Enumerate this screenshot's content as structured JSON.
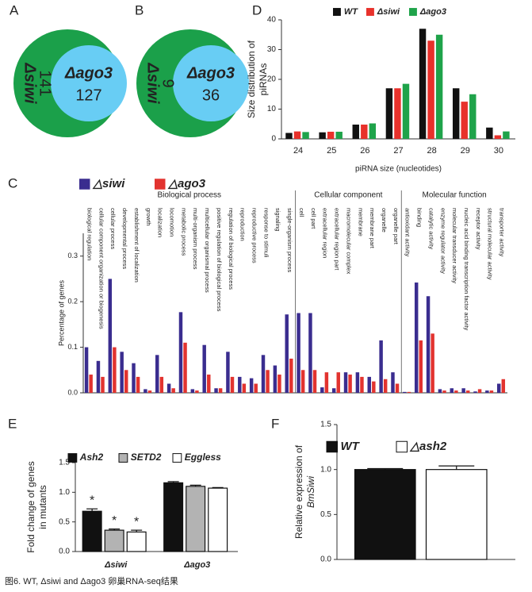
{
  "chart_data": [
    {
      "type": "venn",
      "panel": "A",
      "sets": [
        {
          "name": "Δsiwi",
          "value": 141,
          "color": "#1ba04a"
        },
        {
          "name": "Δago3",
          "value": 127,
          "color": "#68cdf4"
        }
      ]
    },
    {
      "type": "venn",
      "panel": "B",
      "sets": [
        {
          "name": "Δsiwi",
          "value": 9,
          "color": "#1ba04a"
        },
        {
          "name": "Δago3",
          "value": 36,
          "color": "#68cdf4"
        }
      ]
    },
    {
      "type": "bar",
      "panel": "D",
      "ylabel": [
        "Size distribution of",
        "piRNAs"
      ],
      "xlabel": "piRNA size (nucleotides)",
      "categories": [
        "24",
        "25",
        "26",
        "27",
        "28",
        "29",
        "30"
      ],
      "series": [
        {
          "name": "WT",
          "color": "#111111",
          "values": [
            2.0,
            2.2,
            4.8,
            17.0,
            37.0,
            17.0,
            3.8
          ]
        },
        {
          "name": "Δsiwi",
          "color": "#e8312b",
          "values": [
            2.5,
            2.4,
            4.8,
            17.0,
            33.0,
            12.5,
            1.2
          ]
        },
        {
          "name": "Δago3",
          "color": "#1fa34a",
          "values": [
            2.3,
            2.4,
            5.2,
            18.5,
            35.0,
            15.0,
            2.5
          ]
        }
      ],
      "ylim": [
        0,
        40
      ],
      "yticks": [
        0,
        10,
        20,
        30,
        40
      ]
    },
    {
      "type": "bar",
      "panel": "C",
      "ylabel": [
        "Percentage of genes"
      ],
      "groups": [
        {
          "name": "Biological process",
          "categories": [
            "biological  regulation",
            "cellular component organization or biogenesis",
            "cellular process",
            "developmental process",
            "establishment of localization",
            "growth",
            "localization",
            "locomotion",
            "metabolic process",
            "multi-organism process",
            "multicellular organismal process",
            "positive regulation of biological process",
            "regulation of biological process",
            "reproduction",
            "reproductive process",
            "response to stimuli",
            "signaling",
            "single-organism process"
          ]
        },
        {
          "name": "Cellular component",
          "categories": [
            "cell",
            "cell part",
            "extracellular region",
            "extracellular region part",
            "macromolecular complex",
            "membrane",
            "membrane part",
            "organelle",
            "organelle part"
          ]
        },
        {
          "name": "Molecular function",
          "categories": [
            "antioxidant activity",
            "binding",
            "catalytic activity",
            "enzyme regulator activity",
            "molecular transducer activity",
            "nucleic acid binding transcription factor activity",
            "receptor activity",
            "structural molecular activity",
            "transporter activity"
          ]
        }
      ],
      "series": [
        {
          "name": "△siwi",
          "color": "#3a2d8f",
          "values": [
            0.1,
            0.07,
            0.25,
            0.09,
            0.065,
            0.008,
            0.083,
            0.02,
            0.177,
            0.008,
            0.105,
            0.01,
            0.09,
            0.035,
            0.032,
            0.083,
            0.06,
            0.172,
            0.175,
            0.175,
            0.012,
            0.01,
            0.045,
            0.045,
            0.035,
            0.115,
            0.045,
            0.002,
            0.242,
            0.212,
            0.008,
            0.01,
            0.01,
            0.003,
            0.005,
            0.02
          ]
        },
        {
          "name": "△ago3",
          "color": "#e2332f",
          "values": [
            0.04,
            0.035,
            0.1,
            0.05,
            0.035,
            0.005,
            0.035,
            0.01,
            0.11,
            0.005,
            0.04,
            0.01,
            0.035,
            0.02,
            0.02,
            0.05,
            0.04,
            0.075,
            0.05,
            0.05,
            0.045,
            0.045,
            0.04,
            0.035,
            0.025,
            0.03,
            0.02,
            0.002,
            0.115,
            0.13,
            0.005,
            0.005,
            0.005,
            0.008,
            0.005,
            0.03
          ]
        }
      ],
      "ylim": [
        0,
        0.35
      ],
      "yticks": [
        {
          "value": 0,
          "label": "0.0"
        },
        0.1,
        0.2,
        0.3
      ]
    },
    {
      "type": "bar",
      "panel": "E",
      "ylabel": [
        "Fold change of genes",
        "in mutants"
      ],
      "categories": [
        "Δsiwi",
        "Δago3"
      ],
      "series": [
        {
          "name": "Ash2",
          "color": "#111111",
          "values": [
            0.68,
            1.16
          ],
          "errors": [
            0.04,
            0.02
          ],
          "significance": [
            "*",
            null
          ]
        },
        {
          "name": "SETD2",
          "color": "#b3b3b3",
          "values": [
            0.36,
            1.1
          ],
          "errors": [
            0.02,
            0.02
          ],
          "significance": [
            "*",
            null
          ]
        },
        {
          "name": "Eggless",
          "color": "#ffffff",
          "values": [
            0.33,
            1.07
          ],
          "errors": [
            0.03,
            0.01
          ],
          "significance": [
            "*",
            null
          ]
        }
      ],
      "ylim": [
        0,
        1.5
      ],
      "yticks": [
        {
          "value": 0,
          "label": "0.0"
        },
        0.5,
        {
          "value": 1,
          "label": "1.0"
        },
        1.5
      ]
    },
    {
      "type": "bar",
      "panel": "F",
      "ylabel": [
        "Relative expression of",
        "BmSiwi"
      ],
      "categories": [
        null
      ],
      "series": [
        {
          "name": "WT",
          "color": "#111111",
          "values": [
            1.0
          ],
          "errors": [
            0.01
          ]
        },
        {
          "name": "△ash2",
          "color": "#ffffff",
          "values": [
            1.0
          ],
          "errors": [
            0.04
          ]
        }
      ],
      "ylim": [
        0,
        1.5
      ],
      "yticks": [
        {
          "value": 0,
          "label": "0.0"
        },
        0.5,
        {
          "value": 1,
          "label": "1.0"
        },
        1.5
      ]
    }
  ],
  "caption": "图6. WT, Δsiwi and Δago3 卵巢RNA-seq结果"
}
